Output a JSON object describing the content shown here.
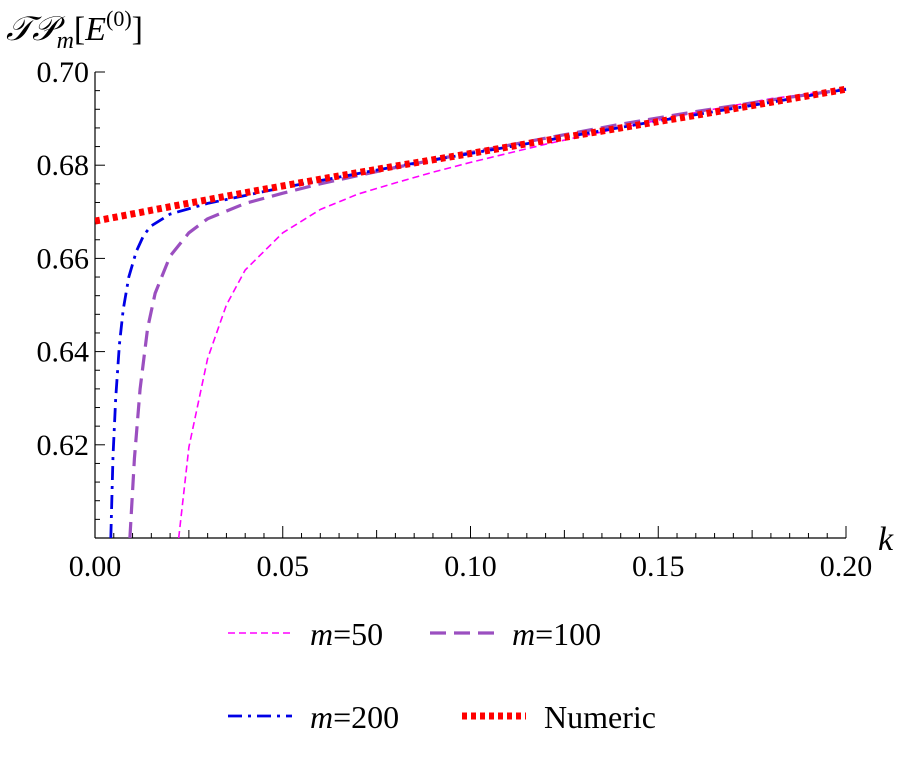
{
  "chart_data": {
    "type": "line",
    "title": "",
    "ylabel": {
      "script": "𝒯𝒫",
      "sub": "m",
      "arg_open": "[",
      "arg": "E",
      "sup": "(0)",
      "arg_close": "]"
    },
    "xlabel": "k",
    "xlim": [
      0.0,
      0.2
    ],
    "ylim": [
      0.6,
      0.7
    ],
    "x_ticks": [
      "0.00",
      "0.05",
      "0.10",
      "0.15",
      "0.20"
    ],
    "y_ticks": [
      "0.62",
      "0.64",
      "0.66",
      "0.68",
      "0.70"
    ],
    "x_tick_values": [
      0.0,
      0.05,
      0.1,
      0.15,
      0.2
    ],
    "y_tick_values": [
      0.62,
      0.64,
      0.66,
      0.68,
      0.7
    ],
    "grid": false,
    "legend_position": "bottom",
    "series": [
      {
        "name": "m=50",
        "legend_var": "m",
        "legend_value": "=50",
        "color": "#ff00ff",
        "style": "short-dash",
        "x": [
          0.0223,
          0.025,
          0.03,
          0.035,
          0.04,
          0.05,
          0.06,
          0.07,
          0.08,
          0.09,
          0.1,
          0.12,
          0.14,
          0.16,
          0.18,
          0.2
        ],
        "y": [
          0.6,
          0.6195,
          0.6385,
          0.65,
          0.6575,
          0.6655,
          0.6705,
          0.6738,
          0.6762,
          0.6785,
          0.6806,
          0.6845,
          0.688,
          0.6913,
          0.6943,
          0.6963
        ]
      },
      {
        "name": "m=100",
        "legend_var": "m",
        "legend_value": "=100",
        "color": "#9b4fc0",
        "style": "dash",
        "x": [
          0.0093,
          0.0105,
          0.012,
          0.014,
          0.016,
          0.02,
          0.025,
          0.03,
          0.04,
          0.05,
          0.06,
          0.08,
          0.1,
          0.12,
          0.14,
          0.16,
          0.18,
          0.2
        ],
        "y": [
          0.6,
          0.617,
          0.632,
          0.645,
          0.6525,
          0.6605,
          0.6655,
          0.6685,
          0.6718,
          0.674,
          0.676,
          0.6795,
          0.6827,
          0.6858,
          0.6888,
          0.6915,
          0.694,
          0.6963
        ]
      },
      {
        "name": "m=200",
        "legend_var": "m",
        "legend_value": "=200",
        "color": "#0000e6",
        "style": "dash-dot",
        "x": [
          0.0042,
          0.0048,
          0.0055,
          0.0065,
          0.0075,
          0.009,
          0.011,
          0.013,
          0.015,
          0.018,
          0.02,
          0.03,
          0.05,
          0.08,
          0.1,
          0.12,
          0.15,
          0.18,
          0.2
        ],
        "y": [
          0.6,
          0.6175,
          0.63,
          0.6415,
          0.649,
          0.656,
          0.6615,
          0.665,
          0.667,
          0.6685,
          0.6695,
          0.6718,
          0.6752,
          0.6797,
          0.6825,
          0.6853,
          0.6895,
          0.6935,
          0.6963
        ]
      },
      {
        "name": "Numeric",
        "legend_var": "",
        "legend_value": "Numeric",
        "color": "#ff0000",
        "style": "dotted",
        "x": [
          0.0,
          0.02,
          0.04,
          0.06,
          0.08,
          0.1,
          0.12,
          0.14,
          0.16,
          0.18,
          0.2
        ],
        "y": [
          0.668,
          0.6711,
          0.6741,
          0.677,
          0.6798,
          0.6825,
          0.6853,
          0.688,
          0.6907,
          0.6935,
          0.6963
        ]
      }
    ]
  }
}
